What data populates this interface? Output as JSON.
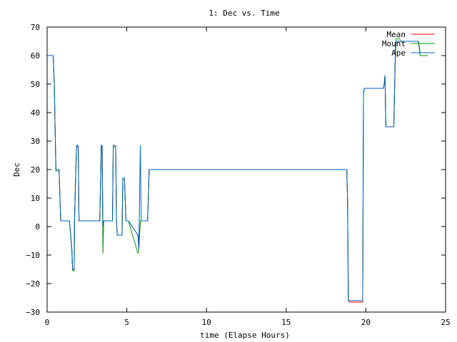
{
  "chart_data": {
    "type": "line",
    "title": "1: Dec vs. Time",
    "xlabel": "time (Elapse Hours)",
    "ylabel": "Dec",
    "xlim": [
      0,
      25
    ],
    "ylim": [
      -30,
      70
    ],
    "xticks": [
      0,
      5,
      10,
      15,
      20,
      25
    ],
    "yticks": [
      -30,
      -20,
      -10,
      0,
      10,
      20,
      30,
      40,
      50,
      60,
      70
    ],
    "grid": false,
    "legend_position": "top-right",
    "series": [
      {
        "name": "Mean",
        "color": "#ff0000",
        "x": [
          0,
          0.38,
          0.45,
          0.55,
          0.75,
          0.85,
          1.4,
          1.55,
          1.6,
          1.7,
          1.72,
          1.8,
          1.85,
          1.95,
          2.0,
          3.3,
          3.4,
          3.45,
          3.5,
          3.55,
          3.6,
          3.7,
          4.1,
          4.15,
          4.2,
          4.3,
          4.35,
          4.4,
          4.5,
          4.7,
          4.75,
          4.85,
          4.95,
          5.1,
          5.7,
          5.75,
          5.85,
          5.9,
          6.3,
          6.35,
          6.4,
          6.45,
          6.5,
          18.8,
          18.85,
          18.9,
          19.0,
          19.5,
          19.8,
          19.85,
          19.9,
          20.0,
          21.1,
          21.15,
          21.2,
          21.25,
          21.3,
          21.7,
          21.75,
          21.8,
          21.85,
          21.9,
          22.1,
          22.2,
          23.3,
          23.4,
          23.5,
          23.9
        ],
        "y": [
          60,
          60,
          50,
          20,
          20,
          2,
          2,
          -8,
          -15.5,
          -15.5,
          2,
          20,
          28.5,
          28.5,
          2,
          2,
          28.5,
          28.5,
          0,
          2,
          2,
          2,
          2,
          28.5,
          28.5,
          28.5,
          2,
          -3,
          -3,
          -3,
          17,
          17,
          2,
          2,
          -3,
          -8,
          2,
          2,
          2,
          10,
          20,
          20,
          20,
          20,
          9,
          -26,
          -26.5,
          -26.5,
          -26.5,
          47,
          48.5,
          48.5,
          48.5,
          50,
          53,
          35,
          35,
          35,
          35,
          48,
          60,
          65,
          65,
          65,
          65,
          60,
          60,
          60
        ]
      },
      {
        "name": "Mount",
        "color": "#00a000",
        "x": [
          0,
          0.38,
          0.45,
          0.55,
          0.75,
          0.85,
          1.4,
          1.55,
          1.6,
          1.7,
          1.72,
          1.8,
          1.85,
          1.95,
          2.0,
          3.3,
          3.4,
          3.45,
          3.5,
          3.55,
          3.6,
          3.7,
          4.1,
          4.15,
          4.2,
          4.3,
          4.35,
          4.4,
          4.5,
          4.7,
          4.75,
          4.85,
          4.95,
          5.1,
          5.7,
          5.75,
          5.85,
          5.9,
          6.3,
          6.35,
          6.4,
          6.45,
          6.5,
          18.8,
          18.85,
          18.9,
          19.0,
          19.5,
          19.8,
          19.85,
          19.9,
          20.0,
          21.1,
          21.15,
          21.2,
          21.25,
          21.3,
          21.7,
          21.75,
          21.8,
          21.85,
          21.9,
          22.1,
          22.2,
          23.3,
          23.4,
          23.5,
          23.9
        ],
        "y": [
          60,
          60,
          50,
          19.5,
          19.5,
          2,
          2,
          -8,
          -15.5,
          -15.5,
          2,
          20,
          28,
          28,
          2,
          2,
          28,
          28,
          -9.5,
          2,
          2,
          2,
          2,
          28,
          28,
          28,
          2,
          -3,
          -3,
          -3,
          17,
          17,
          2,
          2,
          -9.5,
          -8,
          2,
          2,
          2,
          10,
          20,
          20,
          20,
          20,
          9,
          -26,
          -26,
          -26,
          -26,
          47,
          48.5,
          48.5,
          48.5,
          50,
          53,
          35,
          35,
          35,
          35,
          48,
          60,
          66,
          66,
          65,
          65,
          60,
          60,
          60
        ]
      },
      {
        "name": "Ape",
        "color": "#0060c0",
        "x": [
          0,
          0.38,
          0.45,
          0.55,
          0.75,
          0.85,
          1.4,
          1.55,
          1.6,
          1.7,
          1.72,
          1.8,
          1.85,
          1.95,
          2.0,
          3.3,
          3.4,
          3.45,
          3.5,
          3.55,
          3.6,
          3.7,
          4.1,
          4.15,
          4.2,
          4.3,
          4.35,
          4.4,
          4.5,
          4.7,
          4.75,
          4.85,
          4.95,
          5.1,
          5.7,
          5.75,
          5.85,
          5.9,
          6.3,
          6.35,
          6.4,
          6.45,
          6.5,
          18.8,
          18.85,
          18.9,
          19.0,
          19.5,
          19.8,
          19.85,
          19.9,
          20.0,
          21.1,
          21.15,
          21.2,
          21.25,
          21.3,
          21.7,
          21.75,
          21.8,
          21.85,
          21.9,
          22.1,
          22.2,
          23.3,
          23.4,
          23.5,
          23.9
        ],
        "y": [
          60,
          60,
          50,
          20,
          20,
          2,
          2,
          -8,
          -15,
          -15,
          2,
          20,
          28.5,
          28.5,
          2,
          2,
          28.5,
          28.5,
          0,
          2,
          2,
          2,
          2,
          28.5,
          28.5,
          28.5,
          2,
          -3,
          -3,
          -3,
          17,
          17,
          2,
          2,
          -3,
          -8,
          28.5,
          2,
          2,
          10,
          20,
          20,
          20,
          20,
          9,
          -26,
          -26,
          -26,
          -26,
          47,
          48.5,
          48.5,
          48.5,
          50,
          53,
          35,
          35,
          35,
          35,
          48,
          63,
          65,
          65,
          65,
          65,
          61,
          61,
          61
        ]
      }
    ]
  }
}
